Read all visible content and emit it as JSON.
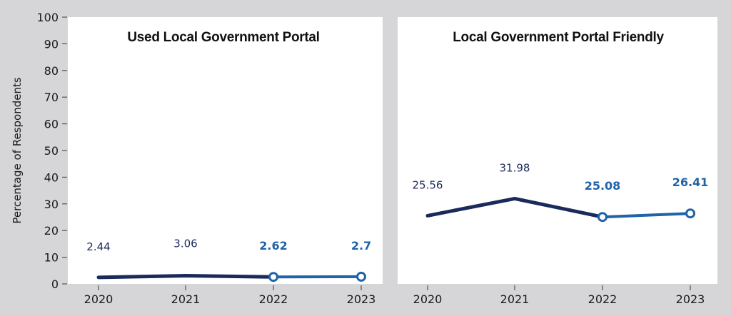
{
  "chart_data": [
    {
      "type": "line",
      "title": "Used Local Government Portal",
      "xlabel": "",
      "ylabel": "Percentage of Respondents",
      "ylim": [
        0,
        100
      ],
      "yticks": [
        "0",
        "10",
        "20",
        "30",
        "40",
        "50",
        "60",
        "70",
        "80",
        "90",
        "100"
      ],
      "categories": [
        "2020",
        "2021",
        "2022",
        "2023"
      ],
      "values": [
        2.44,
        3.06,
        2.62,
        2.7
      ],
      "data_labels": [
        "2.44",
        "3.06",
        "2.62",
        "2.7"
      ],
      "series": [
        {
          "name": "historical",
          "x": [
            "2020",
            "2021",
            "2022"
          ],
          "values": [
            2.44,
            3.06,
            2.62
          ],
          "color": "#1b2a5c",
          "markers": false
        },
        {
          "name": "recent",
          "x": [
            "2022",
            "2023"
          ],
          "values": [
            2.62,
            2.7
          ],
          "color": "#1f63a8",
          "markers": true
        }
      ],
      "grid": false
    },
    {
      "type": "line",
      "title": "Local Government Portal Friendly",
      "xlabel": "",
      "ylabel": "",
      "ylim": [
        0,
        100
      ],
      "categories": [
        "2020",
        "2021",
        "2022",
        "2023"
      ],
      "values": [
        25.56,
        31.98,
        25.08,
        26.41
      ],
      "data_labels": [
        "25.56",
        "31.98",
        "25.08",
        "26.41"
      ],
      "series": [
        {
          "name": "historical",
          "x": [
            "2020",
            "2021",
            "2022"
          ],
          "values": [
            25.56,
            31.98,
            25.08
          ],
          "color": "#1b2a5c",
          "markers": false
        },
        {
          "name": "recent",
          "x": [
            "2022",
            "2023"
          ],
          "values": [
            25.08,
            26.41
          ],
          "color": "#1f63a8",
          "markers": true
        }
      ],
      "grid": false
    }
  ],
  "colors": {
    "background": "#d6d6d8",
    "panel": "#ffffff",
    "historical_line": "#1b2a5c",
    "recent_line": "#1f63a8"
  }
}
